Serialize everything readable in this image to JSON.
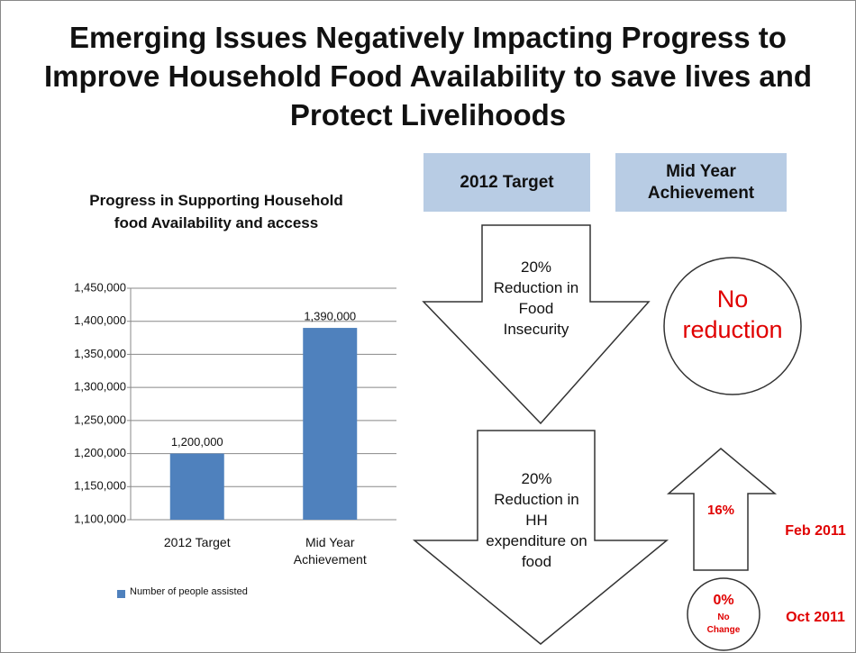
{
  "slide_title": "Emerging Issues Negatively Impacting Progress to Improve Household Food Availability to save lives and Protect Livelihoods",
  "headers": [
    "2012 Target",
    "Mid Year Achievement"
  ],
  "targets": [
    "20% Reduction in Food Insecurity",
    "20% Reduction in HH expenditure on food"
  ],
  "achievement": "No reduction",
  "progress": [
    {
      "value": "16%",
      "date": "Feb 2011"
    },
    {
      "value": "0%",
      "note": "No Change",
      "date": "Oct 2011"
    }
  ],
  "chart_data": {
    "type": "bar",
    "title": "Progress in Supporting Household food Availability and access",
    "categories": [
      "2012 Target",
      "Mid Year Achievement"
    ],
    "series": [
      {
        "name": "Number of people assisted",
        "color": "#4f81bd",
        "values": [
          1200000,
          1390000
        ],
        "value_labels": [
          "1,200,000",
          "1,390,000"
        ]
      }
    ],
    "ylim": [
      1100000,
      1450000
    ],
    "yticks": [
      {
        "value": 1100000,
        "label": "1,100,000"
      },
      {
        "value": 1150000,
        "label": "1,150,000"
      },
      {
        "value": 1200000,
        "label": "1,200,000"
      },
      {
        "value": 1250000,
        "label": "1,250,000"
      },
      {
        "value": 1300000,
        "label": "1,300,000"
      },
      {
        "value": 1350000,
        "label": "1,350,000"
      },
      {
        "value": 1400000,
        "label": "1,400,000"
      },
      {
        "value": 1450000,
        "label": "1,450,000"
      }
    ],
    "grid": true,
    "legend": "bottom"
  }
}
